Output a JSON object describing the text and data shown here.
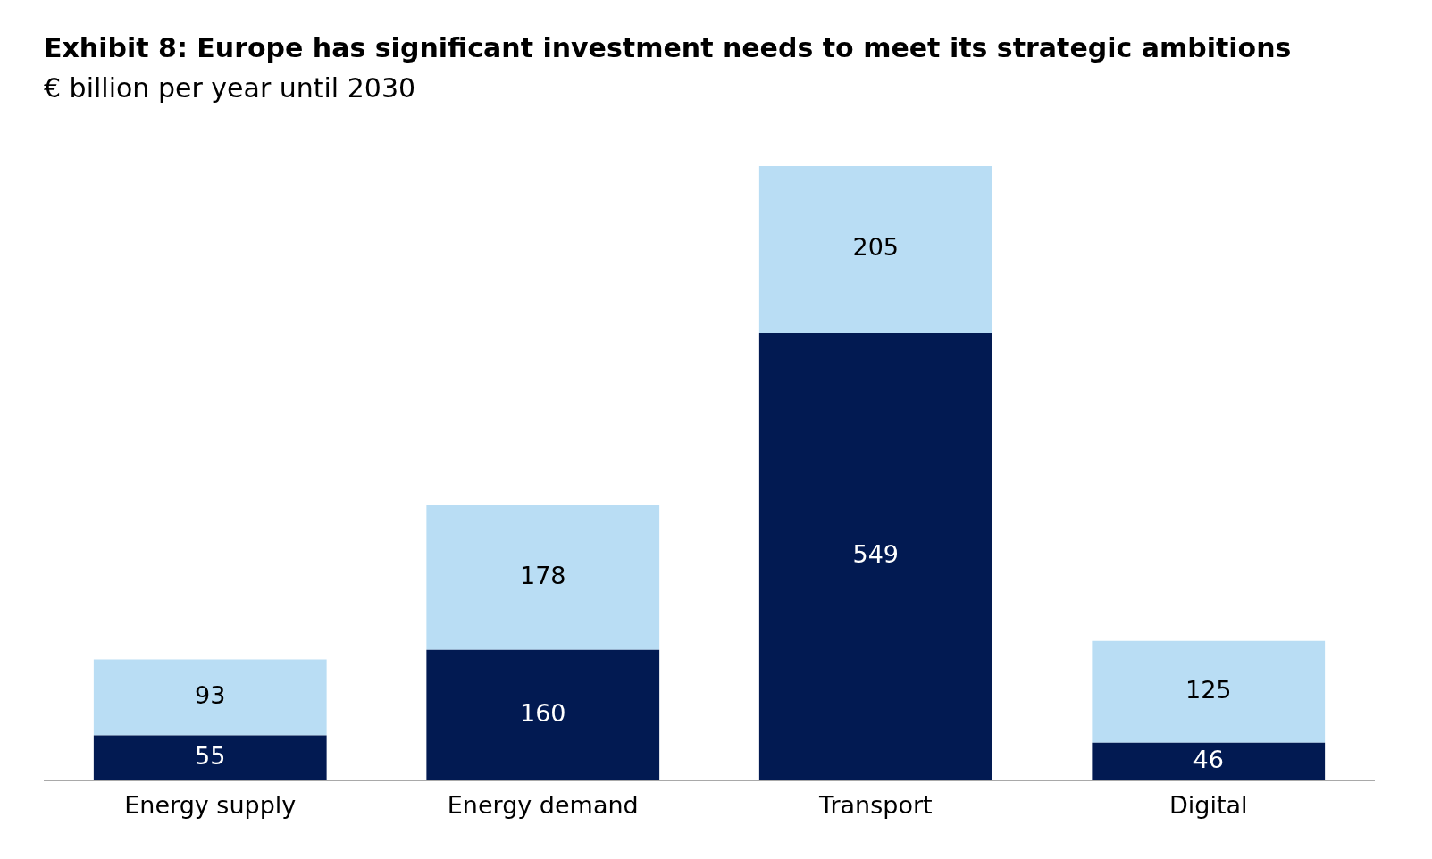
{
  "chart_data": {
    "type": "bar",
    "title": "Exhibit 8: Europe has significant investment needs to meet its strategic ambitions",
    "subtitle": "€ billion per year until 2030",
    "categories": [
      "Energy supply",
      "Energy demand",
      "Transport",
      "Digital"
    ],
    "stacked": true,
    "data_labels": true,
    "legend": false,
    "grid": false,
    "series": [
      {
        "color": "#021a52",
        "values": [
          55,
          160,
          549,
          46
        ]
      },
      {
        "color": "#b9ddf4",
        "values": [
          93,
          178,
          205,
          125
        ]
      }
    ]
  }
}
